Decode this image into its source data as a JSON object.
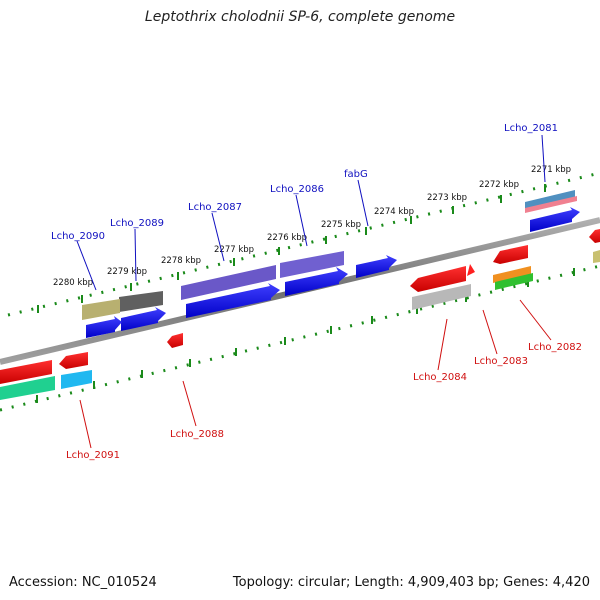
{
  "title": "Leptothrix cholodnii SP-6, complete genome",
  "footer": {
    "accession": "Accession: NC_010524",
    "summary": "Topology: circular; Length: 4,909,403 bp; Genes: 4,420"
  },
  "kbp_labels": [
    "2271 kbp",
    "2272 kbp",
    "2273 kbp",
    "2274 kbp",
    "2275 kbp",
    "2276 kbp",
    "2277 kbp",
    "2278 kbp",
    "2279 kbp",
    "2280 kbp"
  ],
  "gene_labels": {
    "forward": [
      "Lcho_2081",
      "fabG",
      "Lcho_2086",
      "Lcho_2087",
      "Lcho_2089",
      "Lcho_2090"
    ],
    "reverse": [
      "Lcho_2082",
      "Lcho_2083",
      "Lcho_2084",
      "Lcho_2088",
      "Lcho_2091"
    ]
  },
  "colors": {
    "cds_forward": "#1010e0",
    "cds_reverse": "#e01010",
    "label_forward": "#1010c0",
    "label_reverse": "#d01010",
    "backbone": "#808080",
    "tick": "#1a8a1a"
  }
}
